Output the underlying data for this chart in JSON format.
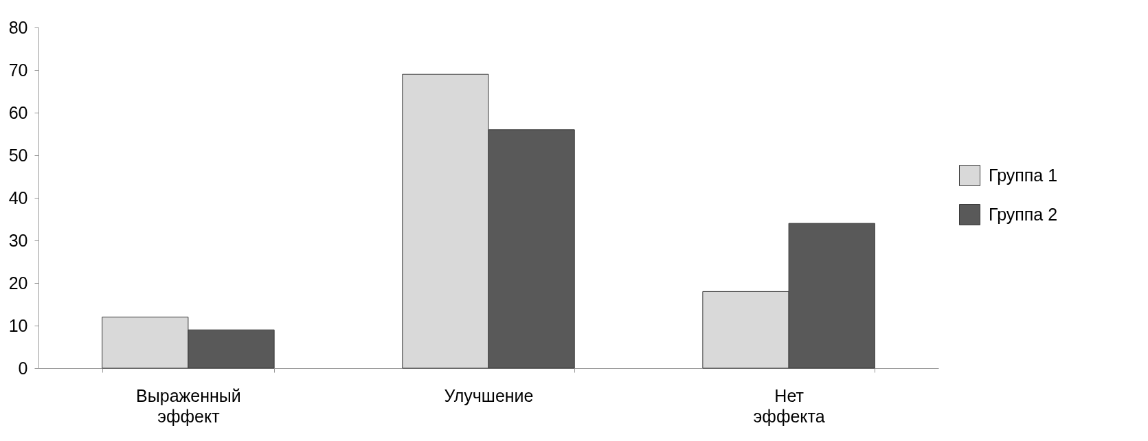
{
  "chart_data": {
    "type": "bar",
    "categories": [
      "Выраженный эффект",
      "Улучшение",
      "Нет эффекта"
    ],
    "series": [
      {
        "name": "Группа 1",
        "color": "#d9d9d9",
        "values": [
          12,
          69,
          18
        ]
      },
      {
        "name": "Группа 2",
        "color": "#595959",
        "values": [
          9,
          56,
          34
        ]
      }
    ],
    "ylim": [
      0,
      80
    ],
    "yticks": [
      0,
      10,
      20,
      30,
      40,
      50,
      60,
      70,
      80
    ],
    "grid": false,
    "legend": "right"
  }
}
